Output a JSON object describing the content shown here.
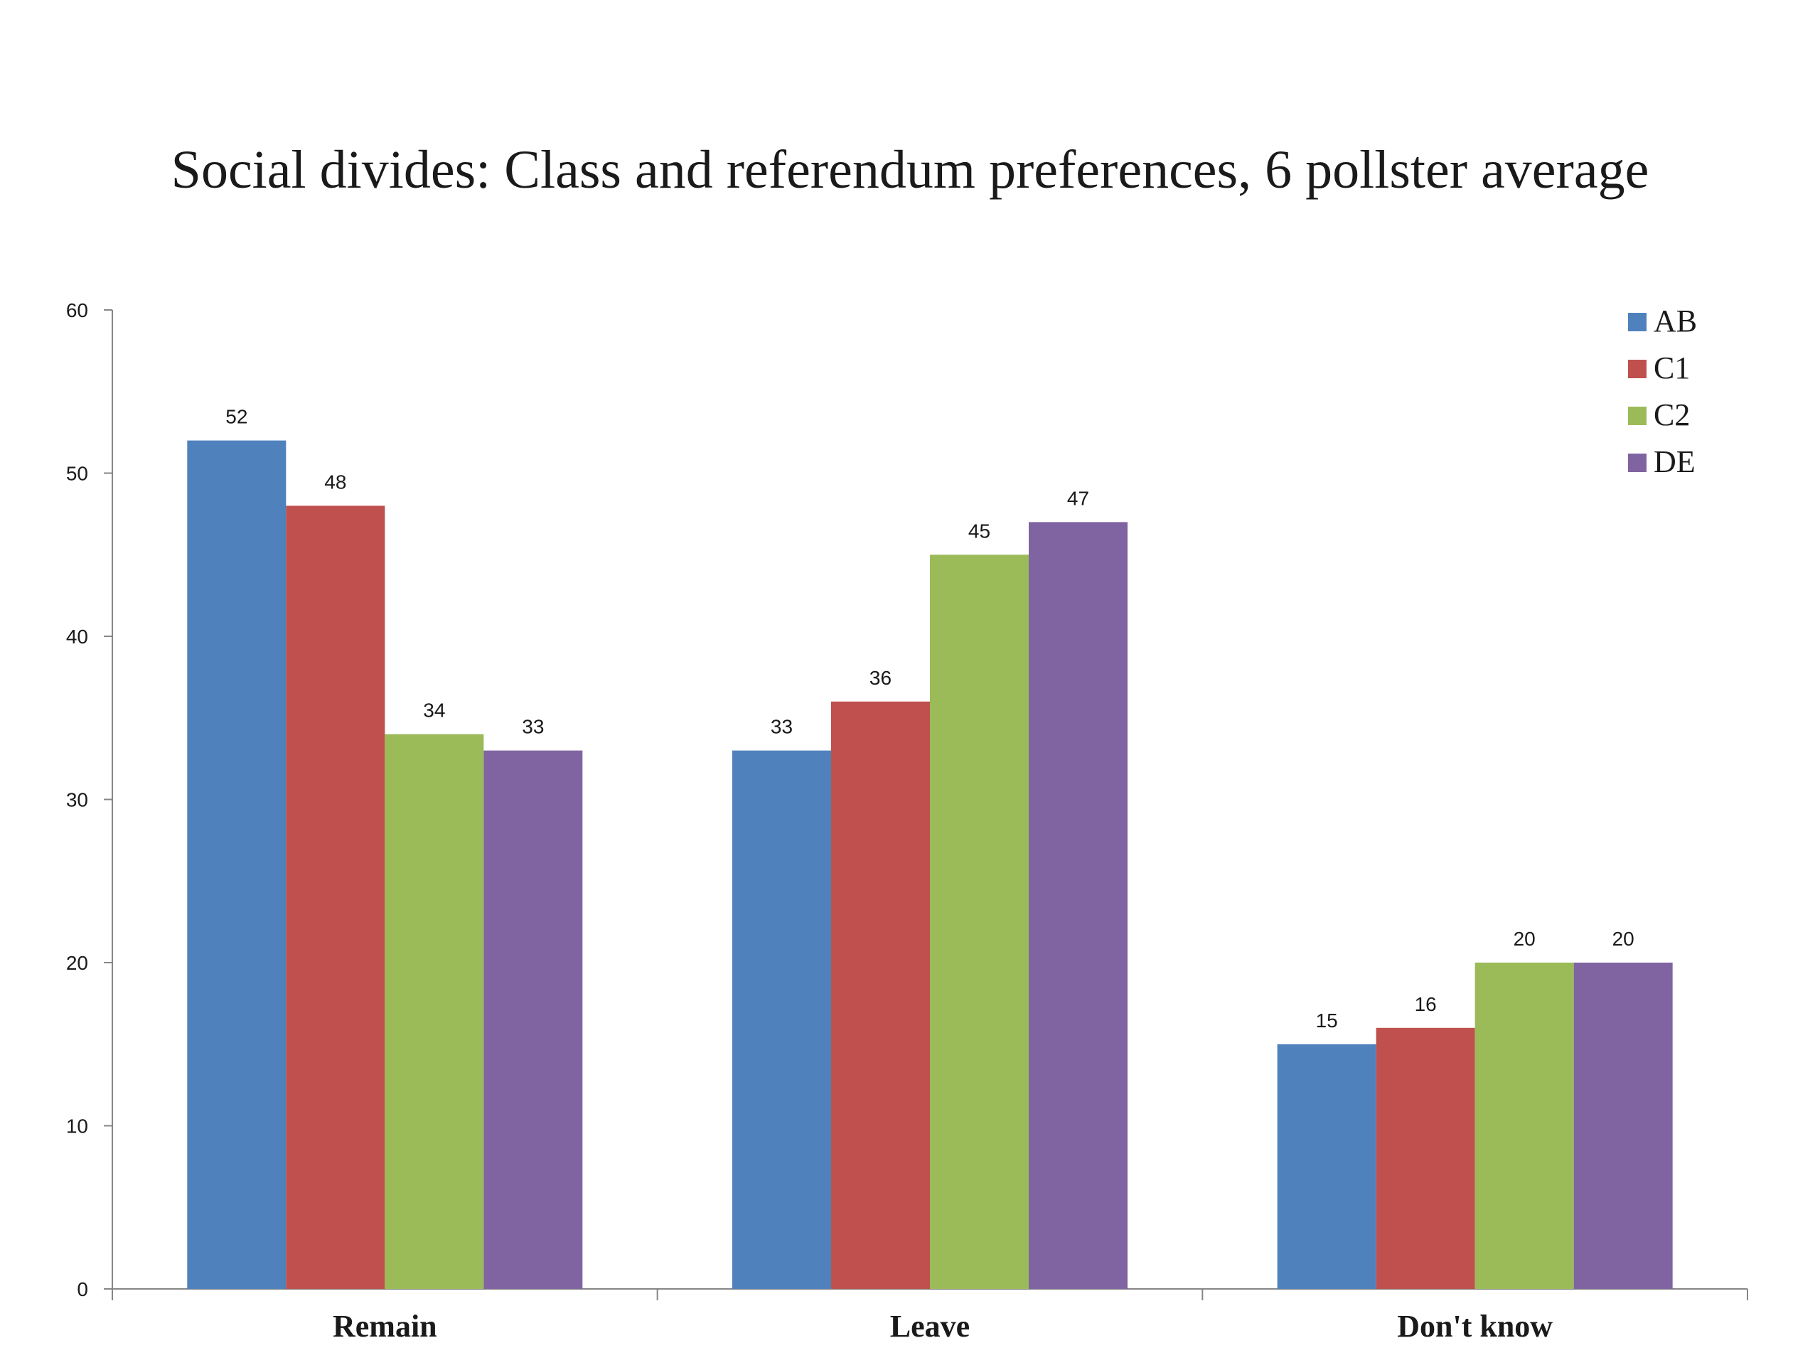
{
  "chart_data": {
    "type": "bar",
    "title": "Social divides: Class and referendum preferences, 6 pollster average",
    "xlabel": "",
    "ylabel": "",
    "categories": [
      "Remain",
      "Leave",
      "Don't know"
    ],
    "series": [
      {
        "name": "AB",
        "color": "#4F81BD",
        "values": [
          52,
          33,
          15
        ]
      },
      {
        "name": "C1",
        "color": "#C0504D",
        "values": [
          48,
          36,
          16
        ]
      },
      {
        "name": "C2",
        "color": "#9BBB59",
        "values": [
          34,
          45,
          20
        ]
      },
      {
        "name": "DE",
        "color": "#8064A2",
        "values": [
          33,
          47,
          20
        ]
      }
    ],
    "ylim": [
      0,
      60
    ],
    "yticks": [
      0,
      10,
      20,
      30,
      40,
      50,
      60
    ],
    "data_labels": true,
    "grid": false,
    "legend_position": "top-right"
  }
}
